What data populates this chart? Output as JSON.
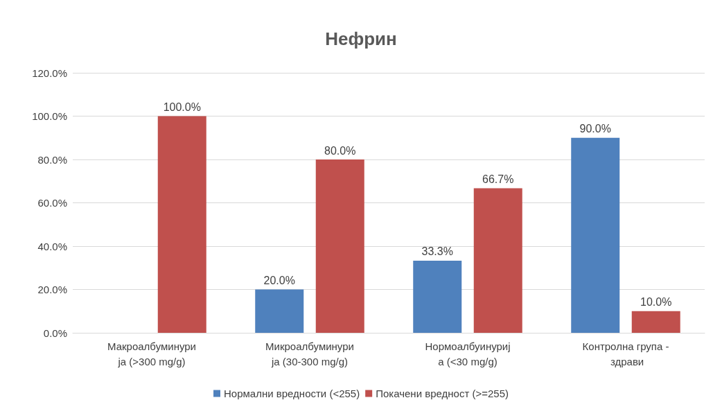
{
  "chart_data": {
    "type": "bar",
    "title": "Нефрин",
    "categories": [
      "Макроалбуминурија (>300 mg/g)",
      "Микроалбуминурија (30-300 mg/g)",
      "Нормоалбуинурија (<30 mg/g)",
      "Контролна група - здрави"
    ],
    "series": [
      {
        "name": "Нормални вредности (<255)",
        "color": "#4f81bd",
        "values": [
          null,
          20,
          33.3,
          90
        ],
        "value_labels": [
          null,
          "20.0%",
          "33.3%",
          "90.0%"
        ]
      },
      {
        "name": "Покачени вредност (>=255)",
        "color": "#c0504d",
        "values": [
          100,
          80,
          66.7,
          10
        ],
        "value_labels": [
          "100.0%",
          "80.0%",
          "66.7%",
          "10.0%"
        ]
      }
    ],
    "ylim": [
      0,
      120
    ],
    "yticks": [
      {
        "value": 0,
        "label": "0.0%"
      },
      {
        "value": 20,
        "label": "20.0%"
      },
      {
        "value": 40,
        "label": "40.0%"
      },
      {
        "value": 60,
        "label": "60.0%"
      },
      {
        "value": 80,
        "label": "80.0%"
      },
      {
        "value": 100,
        "label": "100.0%"
      },
      {
        "value": 120,
        "label": "120.0%"
      }
    ],
    "grid": "y",
    "legend": "bottom"
  }
}
